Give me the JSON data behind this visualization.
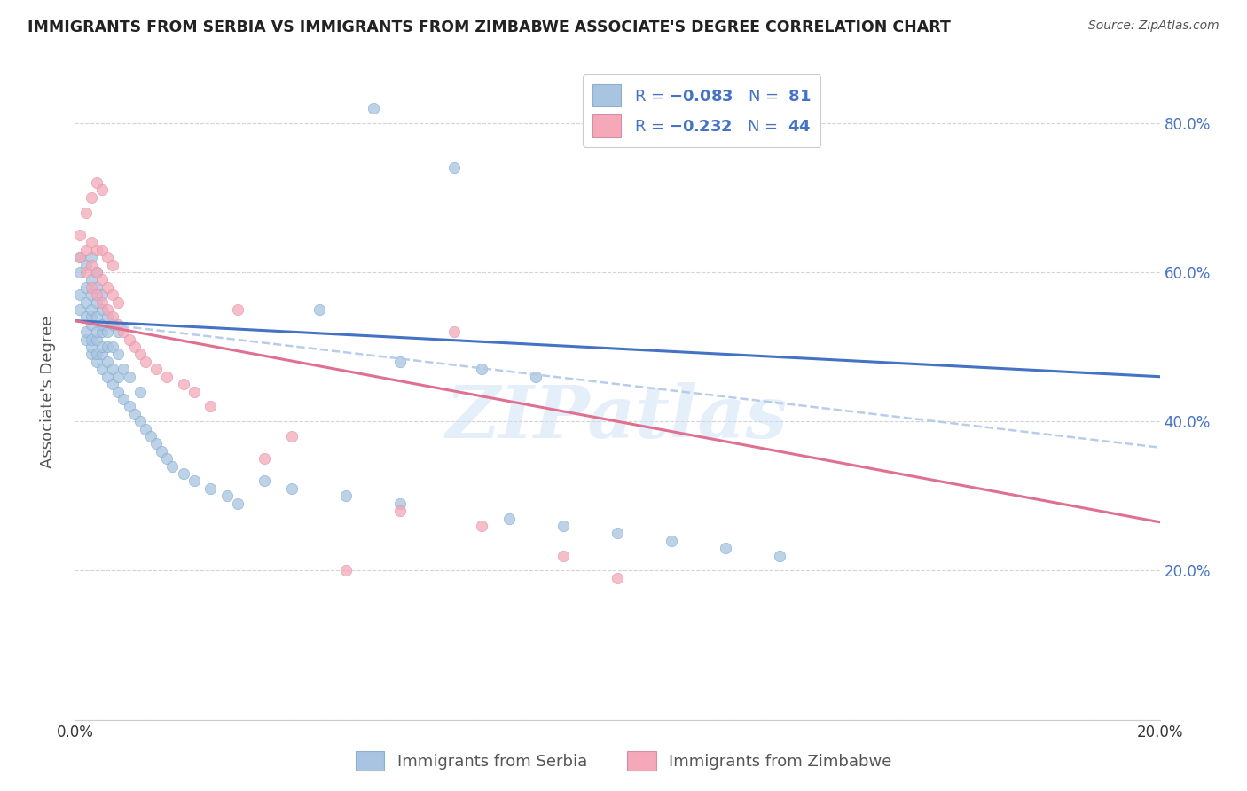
{
  "title": "IMMIGRANTS FROM SERBIA VS IMMIGRANTS FROM ZIMBABWE ASSOCIATE'S DEGREE CORRELATION CHART",
  "source_text": "Source: ZipAtlas.com",
  "ylabel": "Associate's Degree",
  "xlim": [
    0.0,
    0.2
  ],
  "ylim": [
    0.0,
    0.88
  ],
  "serbia_color": "#a8c4e0",
  "zimbabwe_color": "#f4a8b8",
  "serbia_R": -0.083,
  "serbia_N": 81,
  "zimbabwe_R": -0.232,
  "zimbabwe_N": 44,
  "serbia_line_color": "#4472c4",
  "zimbabwe_line_color": "#e07090",
  "dash_line_color": "#b0c8e8",
  "background_color": "#ffffff",
  "grid_color": "#d0d0d0",
  "watermark_text": "ZIPatlas",
  "legend_text_color": "#4472c4",
  "serbia_scatter_x": [
    0.001,
    0.001,
    0.001,
    0.001,
    0.002,
    0.002,
    0.002,
    0.002,
    0.002,
    0.002,
    0.003,
    0.003,
    0.003,
    0.003,
    0.003,
    0.003,
    0.003,
    0.003,
    0.003,
    0.004,
    0.004,
    0.004,
    0.004,
    0.004,
    0.004,
    0.004,
    0.004,
    0.005,
    0.005,
    0.005,
    0.005,
    0.005,
    0.005,
    0.005,
    0.006,
    0.006,
    0.006,
    0.006,
    0.006,
    0.007,
    0.007,
    0.007,
    0.007,
    0.008,
    0.008,
    0.008,
    0.008,
    0.009,
    0.009,
    0.01,
    0.01,
    0.011,
    0.012,
    0.012,
    0.013,
    0.014,
    0.015,
    0.016,
    0.017,
    0.018,
    0.02,
    0.022,
    0.025,
    0.028,
    0.03,
    0.035,
    0.04,
    0.045,
    0.05,
    0.055,
    0.06,
    0.07,
    0.08,
    0.09,
    0.1,
    0.11,
    0.12,
    0.13,
    0.06,
    0.075,
    0.085
  ],
  "serbia_scatter_y": [
    0.55,
    0.57,
    0.6,
    0.62,
    0.51,
    0.52,
    0.54,
    0.56,
    0.58,
    0.61,
    0.49,
    0.5,
    0.51,
    0.53,
    0.54,
    0.55,
    0.57,
    0.59,
    0.62,
    0.48,
    0.49,
    0.51,
    0.52,
    0.54,
    0.56,
    0.58,
    0.6,
    0.47,
    0.49,
    0.5,
    0.52,
    0.53,
    0.55,
    0.57,
    0.46,
    0.48,
    0.5,
    0.52,
    0.54,
    0.45,
    0.47,
    0.5,
    0.53,
    0.44,
    0.46,
    0.49,
    0.52,
    0.43,
    0.47,
    0.42,
    0.46,
    0.41,
    0.4,
    0.44,
    0.39,
    0.38,
    0.37,
    0.36,
    0.35,
    0.34,
    0.33,
    0.32,
    0.31,
    0.3,
    0.29,
    0.32,
    0.31,
    0.55,
    0.3,
    0.82,
    0.29,
    0.74,
    0.27,
    0.26,
    0.25,
    0.24,
    0.23,
    0.22,
    0.48,
    0.47,
    0.46
  ],
  "zimbabwe_scatter_x": [
    0.001,
    0.001,
    0.002,
    0.002,
    0.002,
    0.003,
    0.003,
    0.003,
    0.003,
    0.004,
    0.004,
    0.004,
    0.004,
    0.005,
    0.005,
    0.005,
    0.005,
    0.006,
    0.006,
    0.006,
    0.007,
    0.007,
    0.007,
    0.008,
    0.008,
    0.009,
    0.01,
    0.011,
    0.012,
    0.013,
    0.015,
    0.017,
    0.02,
    0.022,
    0.025,
    0.03,
    0.04,
    0.06,
    0.07,
    0.075,
    0.09,
    0.1,
    0.05,
    0.035
  ],
  "zimbabwe_scatter_y": [
    0.62,
    0.65,
    0.6,
    0.63,
    0.68,
    0.58,
    0.61,
    0.64,
    0.7,
    0.57,
    0.6,
    0.63,
    0.72,
    0.56,
    0.59,
    0.63,
    0.71,
    0.55,
    0.58,
    0.62,
    0.54,
    0.57,
    0.61,
    0.53,
    0.56,
    0.52,
    0.51,
    0.5,
    0.49,
    0.48,
    0.47,
    0.46,
    0.45,
    0.44,
    0.42,
    0.55,
    0.38,
    0.28,
    0.52,
    0.26,
    0.22,
    0.19,
    0.2,
    0.35
  ],
  "serbia_line_x0": 0.0,
  "serbia_line_y0": 0.535,
  "serbia_line_x1": 0.2,
  "serbia_line_y1": 0.46,
  "dash_line_x0": 0.0,
  "dash_line_y0": 0.535,
  "dash_line_x1": 0.2,
  "dash_line_y1": 0.365,
  "zimbabwe_line_x0": 0.0,
  "zimbabwe_line_y0": 0.535,
  "zimbabwe_line_x1": 0.2,
  "zimbabwe_line_y1": 0.265
}
